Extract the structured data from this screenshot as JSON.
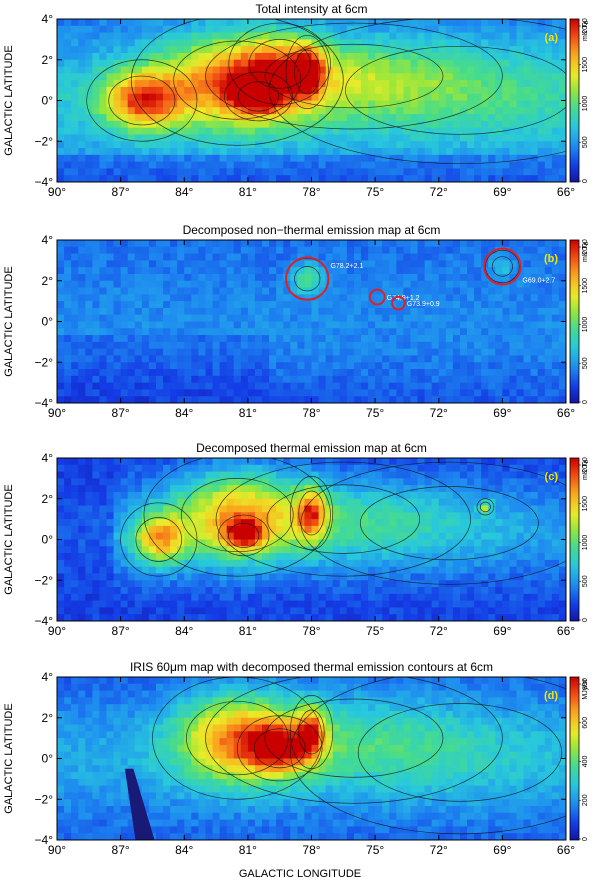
{
  "chart_data": [
    {
      "type": "heatmap",
      "panel": "(a)",
      "title": "Total intensity at 6cm",
      "ylabel": "GALACTIC LATITUDE",
      "xlabel": "GALACTIC LONGITUDE",
      "x_ticks": [
        "90°",
        "87°",
        "84°",
        "81°",
        "78°",
        "75°",
        "72°",
        "69°",
        "66°"
      ],
      "y_ticks": [
        "4°",
        "2°",
        "0°",
        "−2°",
        "−4°"
      ],
      "xlim": [
        90,
        66
      ],
      "ylim": [
        -4,
        4
      ],
      "colorbar": {
        "ticks": [
          "0",
          "500",
          "1000",
          "1500",
          "2000"
        ],
        "unit": "mK T",
        "unit_sub": "B",
        "range": [
          0,
          2000
        ]
      },
      "regions": [
        {
          "l": 86,
          "b": 0.0,
          "sl": 1.3,
          "sb": 1.0,
          "peak": 0.55
        },
        {
          "l": 81.5,
          "b": 1.0,
          "sl": 2.5,
          "sb": 1.6,
          "peak": 0.55
        },
        {
          "l": 80.5,
          "b": 0.2,
          "sl": 0.8,
          "sb": 0.6,
          "peak": 0.45
        },
        {
          "l": 78.2,
          "b": 1.4,
          "sl": 0.5,
          "sb": 0.9,
          "peak": 0.45
        },
        {
          "l": 79.5,
          "b": 1.8,
          "sl": 1.2,
          "sb": 1.0,
          "peak": 0.2
        },
        {
          "l": 76,
          "b": 1.2,
          "sl": 3.5,
          "sb": 1.3,
          "peak": 0.2
        },
        {
          "l": 71,
          "b": 0.5,
          "sl": 4.5,
          "sb": 1.8,
          "peak": 0.12
        }
      ]
    },
    {
      "type": "heatmap",
      "panel": "(b)",
      "title": "Decomposed non−thermal emission map at 6cm",
      "ylabel": "GALACTIC LATITUDE",
      "x_ticks": [
        "90°",
        "87°",
        "84°",
        "81°",
        "78°",
        "75°",
        "72°",
        "69°",
        "66°"
      ],
      "y_ticks": [
        "4°",
        "2°",
        "0°",
        "−2°",
        "−4°"
      ],
      "xlim": [
        90,
        66
      ],
      "ylim": [
        -4,
        4
      ],
      "colorbar": {
        "ticks": [
          "0",
          "500",
          "1000",
          "1500",
          "2000"
        ],
        "unit": "mK T",
        "unit_sub": "B",
        "range": [
          0,
          2000
        ]
      },
      "sources": [
        {
          "name": "G78.2+2.1",
          "l": 78.2,
          "b": 2.1,
          "radius_deg": 1.0
        },
        {
          "name": "G74.9+1.2",
          "l": 74.9,
          "b": 1.2,
          "radius_deg": 0.35
        },
        {
          "name": "G73.9+0.9",
          "l": 73.9,
          "b": 0.9,
          "radius_deg": 0.3
        },
        {
          "name": "G69.0+2.7",
          "l": 69.0,
          "b": 2.7,
          "radius_deg": 0.85
        }
      ],
      "regions": [
        {
          "l": 78.2,
          "b": 2.1,
          "sl": 0.5,
          "sb": 0.5,
          "peak": 0.3
        },
        {
          "l": 69.0,
          "b": 2.7,
          "sl": 0.4,
          "sb": 0.4,
          "peak": 0.15
        }
      ]
    },
    {
      "type": "heatmap",
      "panel": "(c)",
      "title": "Decomposed thermal emission map at 6cm",
      "ylabel": "GALACTIC LATITUDE",
      "x_ticks": [
        "90°",
        "87°",
        "84°",
        "81°",
        "78°",
        "75°",
        "72°",
        "69°",
        "66°"
      ],
      "y_ticks": [
        "4°",
        "2°",
        "0°",
        "−2°",
        "−4°"
      ],
      "xlim": [
        90,
        66
      ],
      "ylim": [
        -4,
        4
      ],
      "colorbar": {
        "ticks": [
          "0",
          "500",
          "1000",
          "1500",
          "2000"
        ],
        "unit": "mK T",
        "unit_sub": "B",
        "range": [
          0,
          2000
        ]
      },
      "regions": [
        {
          "l": 85.2,
          "b": 0.0,
          "sl": 0.9,
          "sb": 0.9,
          "peak": 0.5
        },
        {
          "l": 81.5,
          "b": 1.2,
          "sl": 2.2,
          "sb": 1.5,
          "peak": 0.55
        },
        {
          "l": 81.2,
          "b": 0.2,
          "sl": 0.6,
          "sb": 0.5,
          "peak": 0.45
        },
        {
          "l": 78.0,
          "b": 1.3,
          "sl": 0.5,
          "sb": 0.9,
          "peak": 0.45
        },
        {
          "l": 76.5,
          "b": 1.0,
          "sl": 3.0,
          "sb": 1.4,
          "peak": 0.18
        },
        {
          "l": 71.5,
          "b": 0.8,
          "sl": 3.5,
          "sb": 1.5,
          "peak": 0.1
        },
        {
          "l": 69.8,
          "b": 1.6,
          "sl": 0.2,
          "sb": 0.2,
          "peak": 0.35
        }
      ]
    },
    {
      "type": "heatmap",
      "panel": "(d)",
      "title": "IRIS 60μm map with decomposed thermal emission contours at 6cm",
      "ylabel": "GALACTIC LATITUDE",
      "x_ticks": [
        "90°",
        "87°",
        "84°",
        "81°",
        "78°",
        "75°",
        "72°",
        "69°",
        "66°"
      ],
      "y_ticks": [
        "4°",
        "2°",
        "0°",
        "−2°",
        "−4°"
      ],
      "xlim": [
        90,
        66
      ],
      "ylim": [
        -4,
        4
      ],
      "colorbar": {
        "ticks": [
          "0",
          "200",
          "400",
          "600",
          "800"
        ],
        "unit": "MJy/sr",
        "range": [
          0,
          800
        ]
      },
      "regions": [
        {
          "l": 81.5,
          "b": 1.0,
          "sl": 2.0,
          "sb": 1.5,
          "peak": 0.55
        },
        {
          "l": 79.5,
          "b": 0.5,
          "sl": 1.0,
          "sb": 0.8,
          "peak": 0.5
        },
        {
          "l": 78.0,
          "b": 1.3,
          "sl": 0.5,
          "sb": 0.9,
          "peak": 0.45
        },
        {
          "l": 76.0,
          "b": 1.0,
          "sl": 3.5,
          "sb": 1.6,
          "peak": 0.15
        },
        {
          "l": 71.0,
          "b": 0.3,
          "sl": 4.0,
          "sb": 2.0,
          "peak": 0.08
        }
      ]
    }
  ],
  "colors": {
    "background": "#ffffff",
    "panel_letter": "#f2e600",
    "circle": "#e02020"
  }
}
